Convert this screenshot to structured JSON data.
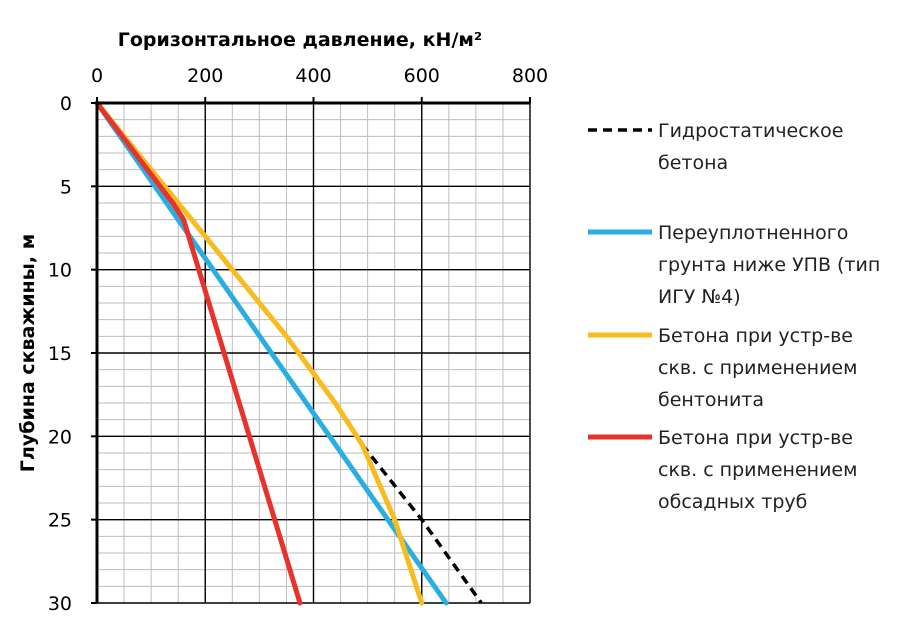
{
  "chart_data": {
    "type": "line",
    "orientation": "depth-down",
    "x_axis": {
      "label": "Горизонтальное давление, кН/м²",
      "position": "top",
      "range": [
        0,
        800
      ],
      "major_ticks": [
        0,
        200,
        400,
        600,
        800
      ],
      "minor_step": 50
    },
    "y_axis": {
      "label": "Глубина скважины, м",
      "range": [
        0,
        30
      ],
      "inverted": true,
      "major_ticks": [
        0,
        5,
        10,
        15,
        20,
        25,
        30
      ],
      "minor_step": 1
    },
    "grid": true,
    "legend_position": "right",
    "series": [
      {
        "name": "Гидростатическое бетона",
        "legend_lines": [
          "Гидростатическое",
          "бетона"
        ],
        "color": "#000000",
        "dashed": true,
        "points": [
          [
            490,
            20.5
          ],
          [
            600,
            25
          ],
          [
            710,
            30
          ]
        ]
      },
      {
        "name": "Переуплотненного грунта ниже УПВ (тип ИГУ №4)",
        "legend_lines": [
          "Переуплотненного",
          "грунта ниже УПВ (тип",
          "ИГУ №4)"
        ],
        "color": "#29AEE3",
        "dashed": false,
        "points": [
          [
            0,
            0
          ],
          [
            150,
            7
          ],
          [
            645,
            30
          ]
        ]
      },
      {
        "name": "Бетона при устр-ве скв. с применением бентонита",
        "legend_lines": [
          "Бетона при устр-ве",
          "скв. с применением",
          "бентонита"
        ],
        "color": "#F9BC1E",
        "dashed": false,
        "points": [
          [
            0,
            0
          ],
          [
            150,
            6
          ],
          [
            250,
            10
          ],
          [
            350,
            14
          ],
          [
            440,
            18
          ],
          [
            490,
            20.5
          ],
          [
            550,
            25
          ],
          [
            600,
            30
          ]
        ]
      },
      {
        "name": "Бетона при устр-ве скв. с применением обсадных труб",
        "legend_lines": [
          "Бетона при устр-ве",
          "скв. с применением",
          "обсадных труб"
        ],
        "color": "#E8322B",
        "dashed": false,
        "points": [
          [
            0,
            0
          ],
          [
            140,
            6
          ],
          [
            160,
            7
          ],
          [
            375,
            30
          ]
        ]
      }
    ]
  }
}
